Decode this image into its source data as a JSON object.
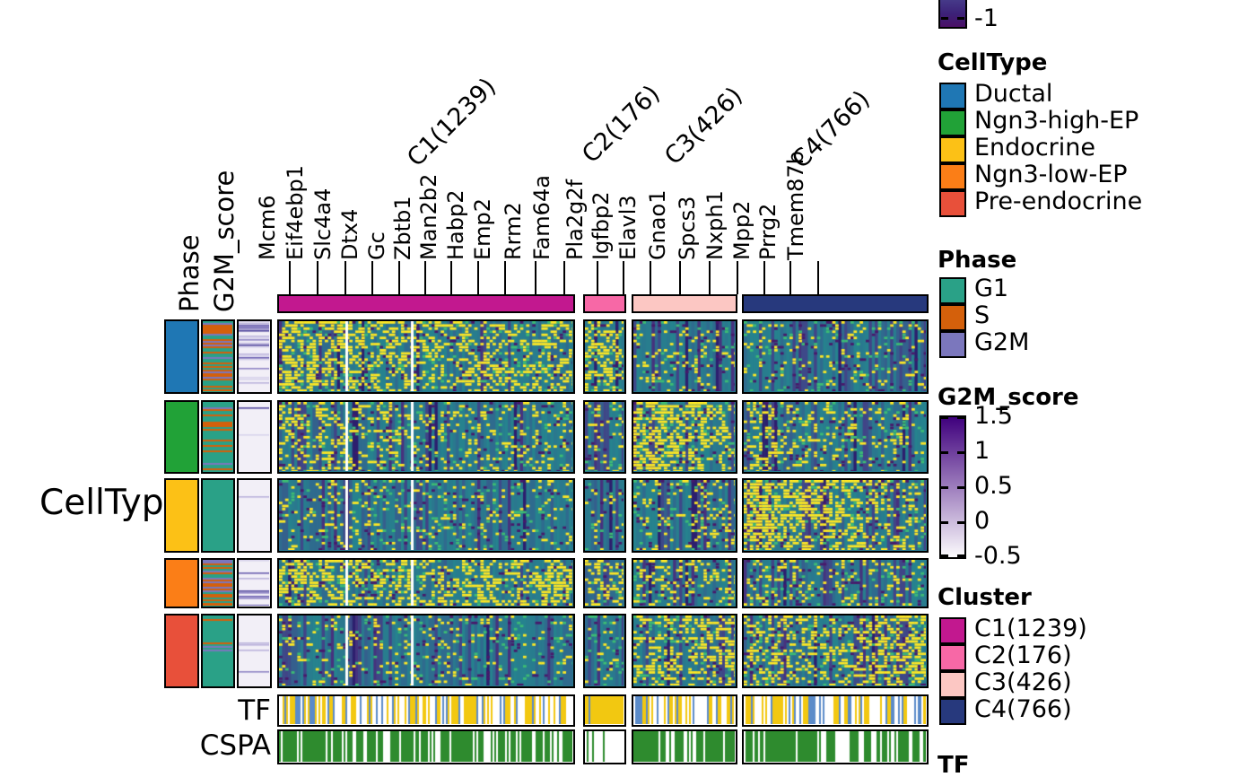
{
  "row_axis_label": "CellType",
  "left_annotations": {
    "phase_label": "Phase",
    "g2m_label": "G2M_score"
  },
  "bottom_annotations": {
    "tf_label": "TF",
    "cspa_label": "CSPA"
  },
  "column_titles": [
    "C1(1239)",
    "C2(176)",
    "C3(426)",
    "C4(766)"
  ],
  "genes": [
    "Mcm6",
    "Eif4ebp1",
    "Slc4a4",
    "Dtx4",
    "Gc",
    "Zbtb1",
    "Man2b2",
    "Habp2",
    "Emp2",
    "Rrm2",
    "Fam64a",
    "Pla2g2f",
    "Igfbp2",
    "Elavl3",
    "Gnao1",
    "Spcs3",
    "Nxph1",
    "Mpp2",
    "Prrg2",
    "Tmem87b"
  ],
  "legends": {
    "expression_partial": {
      "tick": "-1",
      "gradient_top": "#473d8b",
      "gradient_bottom": "#4a1066"
    },
    "celltype": {
      "title": "CellType",
      "items": [
        {
          "label": "Ductal",
          "color": "#1f77b4"
        },
        {
          "label": "Ngn3-high-EP",
          "color": "#21a237"
        },
        {
          "label": "Endocrine",
          "color": "#fcc116"
        },
        {
          "label": "Ngn3-low-EP",
          "color": "#fb7e17"
        },
        {
          "label": "Pre-endocrine",
          "color": "#e8503a"
        }
      ]
    },
    "phase": {
      "title": "Phase",
      "items": [
        {
          "label": "G1",
          "color": "#2aa187"
        },
        {
          "label": "S",
          "color": "#d4600b"
        },
        {
          "label": "G2M",
          "color": "#7b77bd"
        }
      ]
    },
    "g2m_score": {
      "title": "G2M_score",
      "ticks": [
        "1.5",
        "1",
        "0.5",
        "0",
        "-0.5"
      ],
      "gradient_top": "#3f007d",
      "gradient_bottom": "#fcfbfd"
    },
    "cluster": {
      "title": "Cluster",
      "items": [
        {
          "label": "C1(1239)",
          "color": "#c2188f"
        },
        {
          "label": "C2(176)",
          "color": "#f768a6"
        },
        {
          "label": "C3(426)",
          "color": "#fcc7c3"
        },
        {
          "label": "C4(766)",
          "color": "#27397d"
        }
      ]
    },
    "tf": {
      "title": "TF"
    }
  },
  "chart_data": {
    "type": "heatmap",
    "colormap": "viridis",
    "column_clusters": [
      {
        "name": "C1",
        "n_cells": 1239,
        "color": "#c2188f"
      },
      {
        "name": "C2",
        "n_cells": 176,
        "color": "#f768a6"
      },
      {
        "name": "C3",
        "n_cells": 426,
        "color": "#fcc7c3"
      },
      {
        "name": "C4",
        "n_cells": 766,
        "color": "#27397d"
      }
    ],
    "marked_genes_by_cluster": {
      "C1": [
        "Mcm6",
        "Eif4ebp1",
        "Slc4a4",
        "Dtx4",
        "Gc",
        "Zbtb1",
        "Man2b2",
        "Habp2",
        "Emp2",
        "Rrm2",
        "Fam64a"
      ],
      "C2": [
        "Pla2g2f",
        "Igfbp2"
      ],
      "C3": [
        "Elavl3",
        "Gnao1",
        "Spcs3",
        "Nxph1"
      ],
      "C4": [
        "Mpp2",
        "Prrg2",
        "Tmem87b"
      ]
    },
    "row_groups": [
      "Ductal",
      "Ngn3-high-EP",
      "Endocrine",
      "Ngn3-low-EP",
      "Pre-endocrine"
    ],
    "row_annotation_tracks": [
      "CellType",
      "Phase",
      "G2M_score"
    ],
    "bottom_annotation_tracks": [
      "TF",
      "CSPA"
    ],
    "expression_legend_visible_tick": -1,
    "g2m_score_scale": {
      "range": [
        -0.5,
        1.5
      ],
      "ticks": [
        1.5,
        1,
        0.5,
        0,
        -0.5
      ]
    },
    "texture": {
      "heatmap_blocks": [
        [
          {
            "y": [
              0.55,
              0.28,
              0.32
            ],
            "d": [
              0.1,
              0.12,
              0.12
            ]
          },
          {
            "y": [
              0.45,
              0.3,
              0.22
            ],
            "d": [
              0.18,
              0.22,
              0.25
            ]
          },
          {
            "y": [
              0.12,
              0.1,
              0.1
            ],
            "d": [
              0.3,
              0.3,
              0.3
            ]
          },
          {
            "y": [
              0.1,
              0.08,
              0.08
            ],
            "d": [
              0.38,
              0.35,
              0.33
            ]
          }
        ],
        [
          {
            "y": [
              0.3,
              0.14,
              0.12
            ],
            "d": [
              0.42,
              0.16,
              0.12
            ]
          },
          {
            "y": [
              0.18,
              0.12,
              0.1
            ],
            "d": [
              0.35,
              0.3,
              0.3
            ]
          },
          {
            "y": [
              0.62,
              0.45,
              0.22
            ],
            "d": [
              0.15,
              0.15,
              0.15
            ]
          },
          {
            "y": [
              0.26,
              0.15,
              0.1
            ],
            "d": [
              0.35,
              0.3,
              0.28
            ]
          }
        ],
        [
          {
            "y": [
              0.14,
              0.09,
              0.08
            ],
            "d": [
              0.48,
              0.22,
              0.15
            ]
          },
          {
            "y": [
              0.08,
              0.06,
              0.06
            ],
            "d": [
              0.4,
              0.32,
              0.3
            ]
          },
          {
            "y": [
              0.15,
              0.15,
              0.2
            ],
            "d": [
              0.35,
              0.25,
              0.25
            ]
          },
          {
            "y": [
              0.55,
              0.42,
              0.15
            ],
            "d": [
              0.2,
              0.2,
              0.2
            ]
          }
        ],
        [
          {
            "y": [
              0.48,
              0.3,
              0.45
            ],
            "d": [
              0.12,
              0.1,
              0.1
            ]
          },
          {
            "y": [
              0.3,
              0.24,
              0.2
            ],
            "d": [
              0.2,
              0.2,
              0.25
            ]
          },
          {
            "y": [
              0.25,
              0.18,
              0.2
            ],
            "d": [
              0.3,
              0.25,
              0.25
            ]
          },
          {
            "y": [
              0.18,
              0.14,
              0.12
            ],
            "d": [
              0.4,
              0.34,
              0.3
            ]
          }
        ],
        [
          {
            "y": [
              0.1,
              0.08,
              0.08
            ],
            "d": [
              0.52,
              0.22,
              0.15
            ]
          },
          {
            "y": [
              0.08,
              0.06,
              0.08
            ],
            "d": [
              0.42,
              0.3,
              0.3
            ]
          },
          {
            "y": [
              0.42,
              0.25,
              0.4
            ],
            "d": [
              0.2,
              0.2,
              0.2
            ]
          },
          {
            "y": [
              0.35,
              0.25,
              0.52
            ],
            "d": [
              0.3,
              0.25,
              0.2
            ]
          }
        ]
      ],
      "phase_fractions": [
        [
          0.33,
          0.42,
          0.25
        ],
        [
          0.8,
          0.13,
          0.07
        ],
        [
          0.97,
          0.02,
          0.01
        ],
        [
          0.38,
          0.37,
          0.25
        ],
        [
          0.93,
          0.04,
          0.03
        ]
      ],
      "g2m_stripe_density": [
        0.5,
        0.15,
        0.07,
        0.38,
        0.1
      ],
      "tf_fractions": [
        [
          0.45,
          0.15,
          0.4
        ],
        [
          0.7,
          0.12,
          0.18
        ],
        [
          0.28,
          0.28,
          0.44
        ],
        [
          0.28,
          0.18,
          0.54
        ]
      ],
      "cspa_green": [
        [
          0.8,
          0.7,
          0.75
        ],
        [
          0.5,
          0.04,
          0.03
        ],
        [
          0.82,
          0.75,
          0.75
        ],
        [
          0.75,
          0.7,
          0.7
        ]
      ],
      "tf_colors": [
        "#f2c811",
        "#5b8bc9",
        "#ffffff"
      ],
      "cspa_color": "#2e8b2e"
    }
  }
}
